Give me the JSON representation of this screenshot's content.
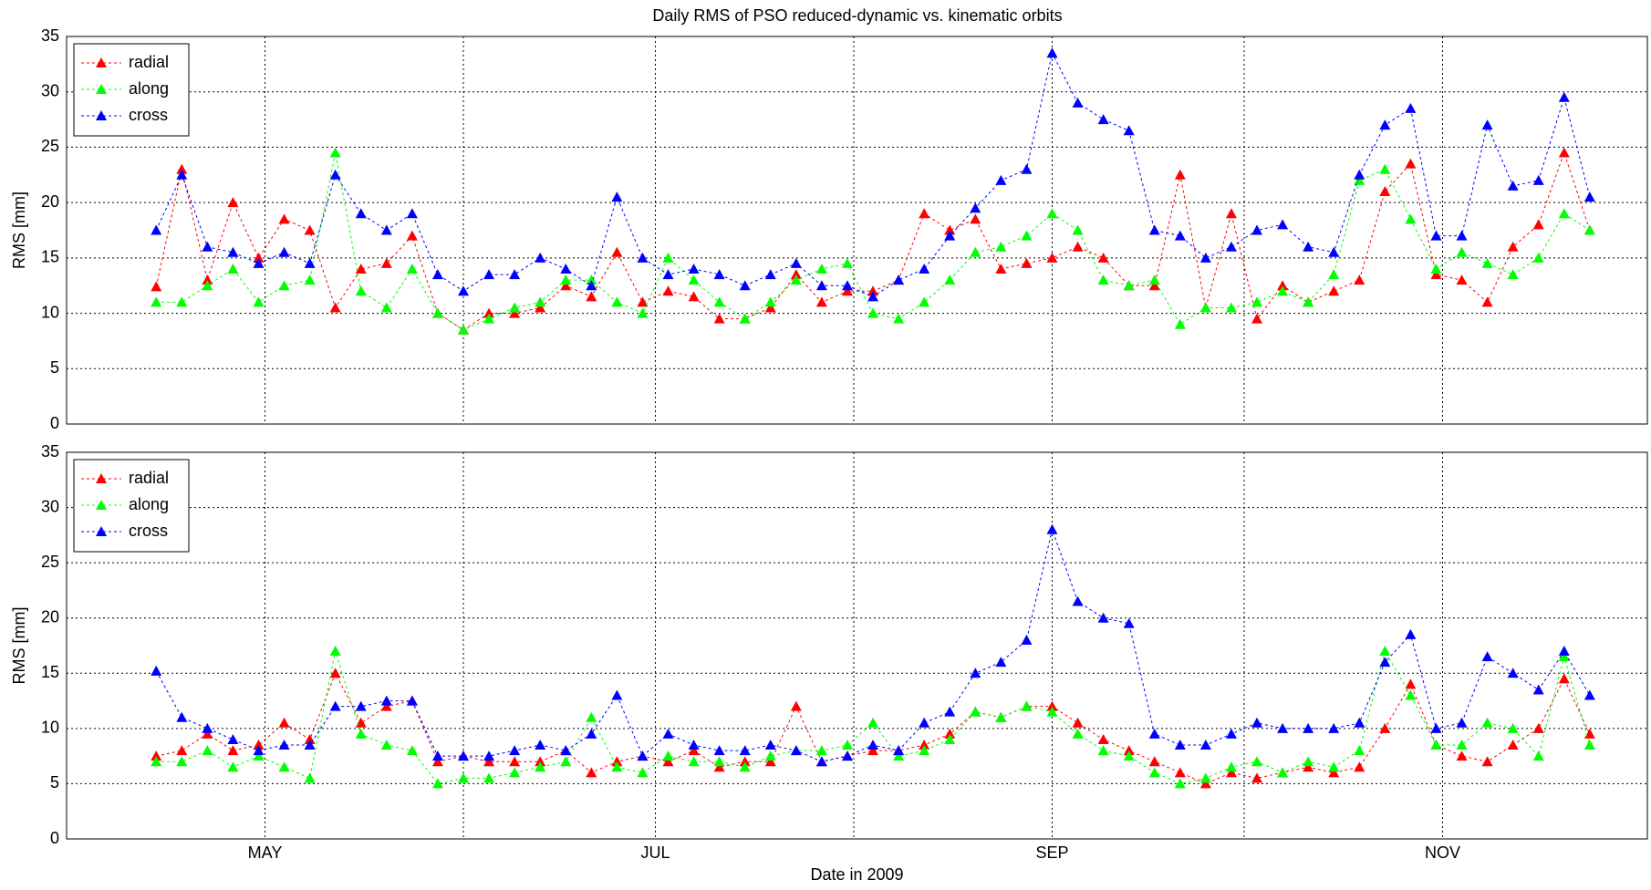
{
  "chart_data": [
    {
      "type": "line",
      "title": "Daily RMS of PSO reduced-dynamic vs. kinematic orbits",
      "ylabel": "RMS [mm]",
      "x": [
        104,
        108,
        112,
        116,
        120,
        124,
        128,
        132,
        136,
        140,
        144,
        148,
        152,
        156,
        160,
        164,
        168,
        172,
        176,
        180,
        184,
        188,
        192,
        196,
        200,
        204,
        208,
        212,
        216,
        220,
        224,
        228,
        232,
        236,
        240,
        244,
        248,
        252,
        256,
        260,
        264,
        268,
        272,
        276,
        280,
        284,
        288,
        292,
        296,
        300,
        304,
        308,
        312,
        316,
        320,
        324,
        328
      ],
      "xlim": [
        90,
        337
      ],
      "ylim": [
        0,
        35
      ],
      "yticks": [
        0,
        5,
        10,
        15,
        20,
        25,
        30,
        35
      ],
      "xticks": [
        {
          "value": 121,
          "label": null
        },
        {
          "value": 152,
          "label": null
        },
        {
          "value": 182,
          "label": null
        },
        {
          "value": 213,
          "label": null
        },
        {
          "value": 244,
          "label": null
        },
        {
          "value": 274,
          "label": null
        },
        {
          "value": 305,
          "label": null
        }
      ],
      "grid": true,
      "legend": "upper left",
      "series": [
        {
          "name": "radial",
          "color": "#ff0000",
          "values": [
            12.4,
            23,
            13,
            20,
            15,
            18.5,
            17.5,
            10.5,
            14,
            14.5,
            17,
            10,
            8.5,
            10,
            10,
            10.5,
            12.5,
            11.5,
            15.5,
            11,
            12,
            11.5,
            9.5,
            9.5,
            10.5,
            13.5,
            11,
            12,
            12,
            13,
            19,
            17.5,
            18.5,
            14,
            14.5,
            15,
            16,
            15,
            12.5,
            12.5,
            22.5,
            10.5,
            19,
            9.5,
            12.5,
            11,
            12,
            13,
            21,
            23.5,
            13.5,
            13,
            11,
            16,
            18,
            24.5,
            17.5
          ]
        },
        {
          "name": "along",
          "color": "#00ff00",
          "values": [
            11,
            11,
            12.5,
            14,
            11,
            12.5,
            13,
            24.5,
            12,
            10.5,
            14,
            10,
            8.5,
            9.5,
            10.5,
            11,
            13,
            13,
            11,
            10,
            15,
            13,
            11,
            9.5,
            11,
            13,
            14,
            14.5,
            10,
            9.5,
            11,
            13,
            15.5,
            16,
            17,
            19,
            17.5,
            13,
            12.5,
            13,
            9,
            10.5,
            10.5,
            11,
            12,
            11,
            13.5,
            22,
            23,
            18.5,
            14,
            15.5,
            14.5,
            13.5,
            15,
            19,
            17.5
          ]
        },
        {
          "name": "cross",
          "color": "#0000ff",
          "values": [
            17.5,
            22.5,
            16,
            15.5,
            14.5,
            15.5,
            14.5,
            22.5,
            19,
            17.5,
            19,
            13.5,
            12,
            13.5,
            13.5,
            15,
            14,
            12.5,
            20.5,
            15,
            13.5,
            14,
            13.5,
            12.5,
            13.5,
            14.5,
            12.5,
            12.5,
            11.5,
            13,
            14,
            17,
            19.5,
            22,
            23,
            33.5,
            29,
            27.5,
            26.5,
            17.5,
            17,
            15,
            16,
            17.5,
            18,
            16,
            15.5,
            22.5,
            27,
            28.5,
            17,
            17,
            27,
            21.5,
            22,
            29.5,
            20.5
          ]
        }
      ]
    },
    {
      "type": "line",
      "ylabel": "RMS [mm]",
      "xlabel": "Date in 2009",
      "x": [
        104,
        108,
        112,
        116,
        120,
        124,
        128,
        132,
        136,
        140,
        144,
        148,
        152,
        156,
        160,
        164,
        168,
        172,
        176,
        180,
        184,
        188,
        192,
        196,
        200,
        204,
        208,
        212,
        216,
        220,
        224,
        228,
        232,
        236,
        240,
        244,
        248,
        252,
        256,
        260,
        264,
        268,
        272,
        276,
        280,
        284,
        288,
        292,
        296,
        300,
        304,
        308,
        312,
        316,
        320,
        324,
        328
      ],
      "xlim": [
        90,
        337
      ],
      "ylim": [
        0,
        35
      ],
      "yticks": [
        0,
        5,
        10,
        15,
        20,
        25,
        30,
        35
      ],
      "xticks": [
        {
          "value": 121,
          "label": "MAY"
        },
        {
          "value": 152,
          "label": null
        },
        {
          "value": 182,
          "label": "JUL"
        },
        {
          "value": 213,
          "label": null
        },
        {
          "value": 244,
          "label": "SEP"
        },
        {
          "value": 274,
          "label": null
        },
        {
          "value": 305,
          "label": "NOV"
        }
      ],
      "grid": true,
      "legend": "upper left",
      "series": [
        {
          "name": "radial",
          "color": "#ff0000",
          "values": [
            7.5,
            8,
            9.5,
            8,
            8.5,
            10.5,
            9,
            15,
            10.5,
            12,
            12.5,
            7,
            7.5,
            7,
            7,
            7,
            8,
            6,
            7,
            7.5,
            7,
            8,
            6.5,
            7,
            7,
            12,
            7,
            7.5,
            8,
            8,
            8.5,
            9.5,
            11.5,
            11,
            12,
            12,
            10.5,
            9,
            8,
            7,
            6,
            5,
            6,
            5.5,
            6,
            6.5,
            6,
            6.5,
            10,
            14,
            8.5,
            7.5,
            7,
            8.5,
            10,
            14.5,
            9.5
          ]
        },
        {
          "name": "along",
          "color": "#00ff00",
          "values": [
            7,
            7,
            8,
            6.5,
            7.5,
            6.5,
            5.5,
            17,
            9.5,
            8.5,
            8,
            5,
            5.5,
            5.5,
            6,
            6.5,
            7,
            11,
            6.5,
            6,
            7.5,
            7,
            7,
            6.5,
            7.5,
            8,
            8,
            8.5,
            10.5,
            7.5,
            8,
            9,
            11.5,
            11,
            12,
            11.5,
            9.5,
            8,
            7.5,
            6,
            5,
            5.5,
            6.5,
            7,
            6,
            7,
            6.5,
            8,
            17,
            13,
            8.5,
            8.5,
            10.5,
            10,
            7.5,
            16.5,
            8.5
          ]
        },
        {
          "name": "cross",
          "color": "#0000ff",
          "values": [
            15.2,
            11,
            10,
            9,
            8,
            8.5,
            8.5,
            12,
            12,
            12.5,
            12.5,
            7.5,
            7.5,
            7.5,
            8,
            8.5,
            8,
            9.5,
            13,
            7.5,
            9.5,
            8.5,
            8,
            8,
            8.5,
            8,
            7,
            7.5,
            8.5,
            8,
            10.5,
            11.5,
            15,
            16,
            18,
            28,
            21.5,
            20,
            19.5,
            9.5,
            8.5,
            8.5,
            9.5,
            10.5,
            10,
            10,
            10,
            10.5,
            16,
            18.5,
            10,
            10.5,
            16.5,
            15,
            13.5,
            17,
            13
          ]
        }
      ]
    }
  ]
}
